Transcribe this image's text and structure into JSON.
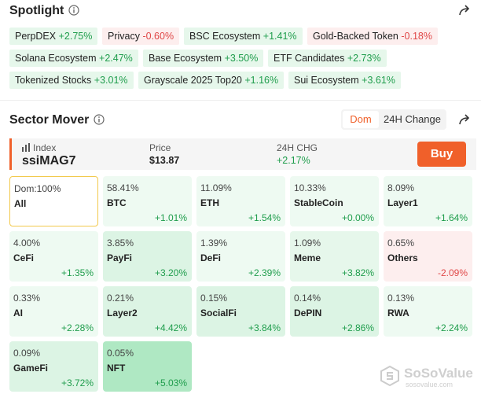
{
  "spotlight": {
    "title": "Spotlight",
    "tags": [
      [
        {
          "name": "PerpDEX",
          "change": "+2.75%"
        },
        {
          "name": "Privacy",
          "change": "-0.60%"
        },
        {
          "name": "BSC Ecosystem",
          "change": "+1.41%"
        },
        {
          "name": "Gold-Backed Token",
          "change": "-0.18%"
        }
      ],
      [
        {
          "name": "Solana Ecosystem",
          "change": "+2.47%"
        },
        {
          "name": "Base Ecosystem",
          "change": "+3.50%"
        },
        {
          "name": "ETF Candidates",
          "change": "+2.73%"
        }
      ],
      [
        {
          "name": "Tokenized Stocks",
          "change": "+3.01%"
        },
        {
          "name": "Grayscale 2025 Top20",
          "change": "+1.16%"
        },
        {
          "name": "Sui Ecosystem",
          "change": "+3.61%"
        }
      ]
    ]
  },
  "sector": {
    "title": "Sector Mover",
    "tabs": [
      "Dom",
      "24H Change"
    ],
    "index": {
      "label": "Index",
      "name": "ssiMAG7",
      "price_label": "Price",
      "price": "$13.87",
      "chg_label": "24H CHG",
      "chg": "+2.17%",
      "button": "Buy"
    },
    "tiles": [
      {
        "dom": "Dom:100%",
        "name": "All",
        "change": null,
        "color": "#ffffff"
      },
      {
        "dom": "58.41%",
        "name": "BTC",
        "change": "+1.01%",
        "color": "#eefaf2"
      },
      {
        "dom": "11.09%",
        "name": "ETH",
        "change": "+1.54%",
        "color": "#eefaf2"
      },
      {
        "dom": "10.33%",
        "name": "StableCoin",
        "change": "+0.00%",
        "color": "#eefaf2"
      },
      {
        "dom": "8.09%",
        "name": "Layer1",
        "change": "+1.64%",
        "color": "#eefaf2"
      },
      {
        "dom": "4.00%",
        "name": "CeFi",
        "change": "+1.35%",
        "color": "#eefaf2"
      },
      {
        "dom": "3.85%",
        "name": "PayFi",
        "change": "+3.20%",
        "color": "#dcf4e4"
      },
      {
        "dom": "1.39%",
        "name": "DeFi",
        "change": "+2.39%",
        "color": "#eefaf2"
      },
      {
        "dom": "1.09%",
        "name": "Meme",
        "change": "+3.82%",
        "color": "#e6f7eb"
      },
      {
        "dom": "0.65%",
        "name": "Others",
        "change": "-2.09%",
        "color": "#fdeeee"
      },
      {
        "dom": "0.33%",
        "name": "AI",
        "change": "+2.28%",
        "color": "#eefaf2"
      },
      {
        "dom": "0.21%",
        "name": "Layer2",
        "change": "+4.42%",
        "color": "#dcf4e4"
      },
      {
        "dom": "0.15%",
        "name": "SocialFi",
        "change": "+3.84%",
        "color": "#dcf4e4"
      },
      {
        "dom": "0.14%",
        "name": "DePIN",
        "change": "+2.86%",
        "color": "#dcf4e4"
      },
      {
        "dom": "0.13%",
        "name": "RWA",
        "change": "+2.24%",
        "color": "#eefaf2"
      },
      {
        "dom": "0.09%",
        "name": "GameFi",
        "change": "+3.72%",
        "color": "#dcf4e4"
      },
      {
        "dom": "0.05%",
        "name": "NFT",
        "change": "+5.03%",
        "color": "#afe8c3"
      }
    ]
  },
  "watermark": {
    "name": "SoSoValue",
    "url": "sosovalue.com"
  }
}
